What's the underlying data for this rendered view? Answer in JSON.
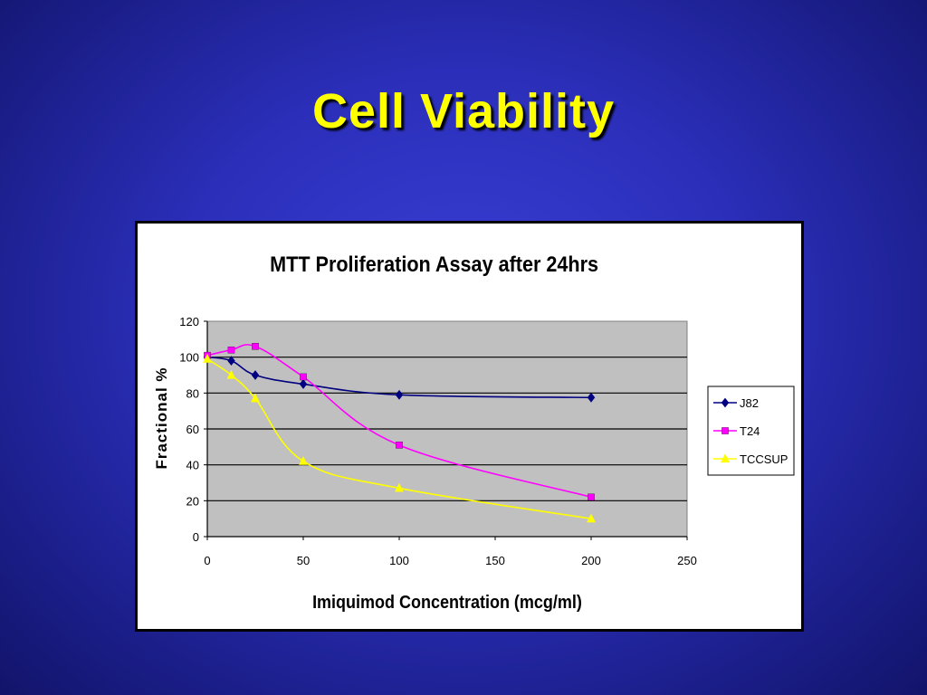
{
  "slide": {
    "title": "Cell Viability"
  },
  "colors": {
    "plot_bg": "#c0c0c0",
    "J82": "#000080",
    "T24": "#ff00ff",
    "TCCSUP": "#ffff00"
  },
  "chart_data": {
    "type": "line",
    "title": "MTT Proliferation Assay after 24hrs",
    "xlabel": "Imiquimod Concentration (mcg/ml)",
    "ylabel": "Fractional %",
    "xlim": [
      0,
      250
    ],
    "ylim": [
      0,
      120
    ],
    "xticks": [
      "0",
      "50",
      "100",
      "150",
      "200",
      "250"
    ],
    "yticks": [
      "0",
      "20",
      "40",
      "60",
      "80",
      "100",
      "120"
    ],
    "grid": true,
    "legend_position": "right",
    "series": [
      {
        "name": "J82",
        "marker": "diamond",
        "x": [
          0,
          12.5,
          25,
          50,
          100,
          200
        ],
        "y": [
          100,
          98,
          90,
          85,
          79,
          77.5
        ]
      },
      {
        "name": "T24",
        "marker": "square",
        "x": [
          0,
          12.5,
          25,
          50,
          100,
          200
        ],
        "y": [
          101,
          104,
          106,
          89,
          51,
          22
        ]
      },
      {
        "name": "TCCSUP",
        "marker": "triangle",
        "x": [
          0,
          12.5,
          25,
          50,
          100,
          200
        ],
        "y": [
          99,
          90,
          77,
          42,
          27,
          10
        ]
      }
    ]
  }
}
